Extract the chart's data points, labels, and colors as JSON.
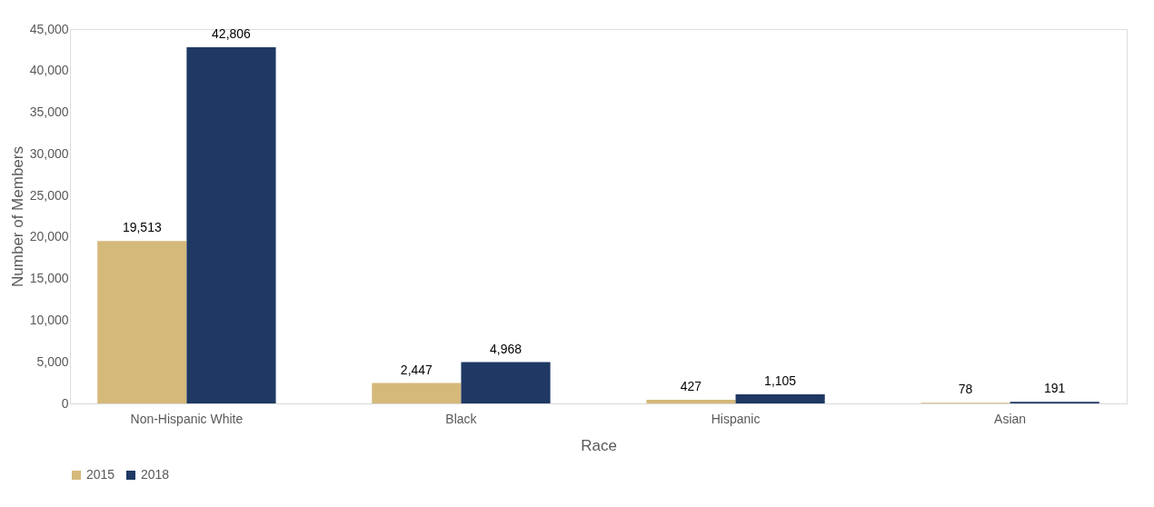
{
  "chart_data": {
    "type": "bar",
    "xlabel": "Race",
    "ylabel": "Number of Members",
    "categories": [
      "Non-Hispanic White",
      "Black",
      "Hispanic",
      "Asian"
    ],
    "series": [
      {
        "name": "2015",
        "color": "#d4b97a",
        "values": [
          19513,
          2447,
          427,
          78
        ],
        "value_labels": [
          "19,513",
          "2,447",
          "427",
          "78"
        ]
      },
      {
        "name": "2018",
        "color": "#1f3864",
        "values": [
          42806,
          4968,
          1105,
          191
        ],
        "value_labels": [
          "42,806",
          "4,968",
          "1,105",
          "191"
        ]
      }
    ],
    "ylim": [
      0,
      45000
    ],
    "yticks": [
      0,
      {
        "value": 5000,
        "label": "5,000"
      },
      {
        "value": 10000,
        "label": "10,000"
      },
      {
        "value": 15000,
        "label": "15,000"
      },
      {
        "value": 20000,
        "label": "20,000"
      },
      {
        "value": 25000,
        "label": "25,000"
      },
      {
        "value": 30000,
        "label": "30,000"
      },
      {
        "value": 35000,
        "label": "35,000"
      },
      {
        "value": 40000,
        "label": "40,000"
      },
      {
        "value": 45000,
        "label": "45,000"
      }
    ],
    "grid": false,
    "legend": "bottom"
  }
}
